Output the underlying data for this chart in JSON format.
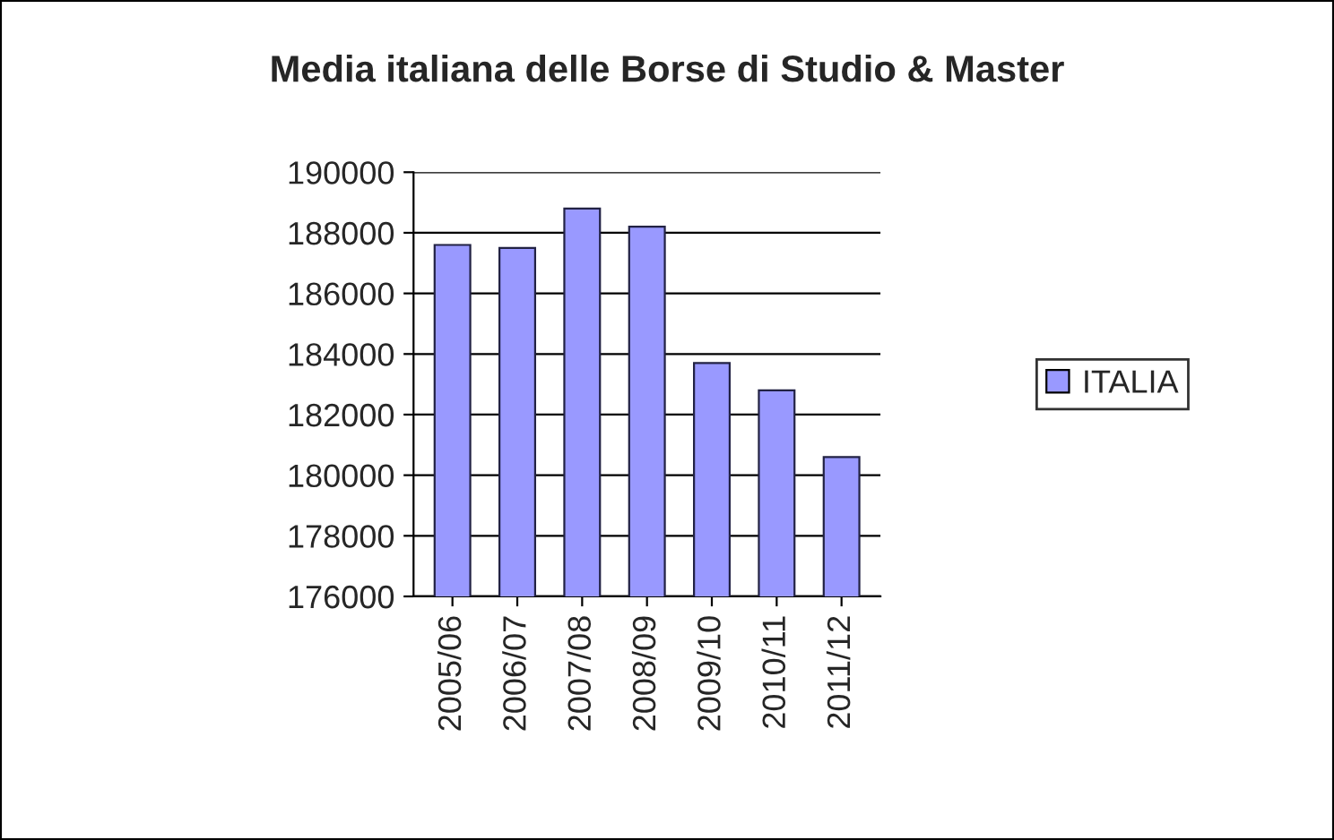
{
  "chart_data": {
    "type": "bar",
    "title": "Media italiana delle Borse di Studio & Master",
    "categories": [
      "2005/06",
      "2006/07",
      "2007/08",
      "2008/09",
      "2009/10",
      "2010/11",
      "2011/12"
    ],
    "series": [
      {
        "name": "ITALIA",
        "color": "#9999ff",
        "values": [
          187600,
          187500,
          188800,
          188200,
          183700,
          182800,
          180600
        ]
      }
    ],
    "ylim": [
      176000,
      190000
    ],
    "yticks": [
      176000,
      178000,
      180000,
      182000,
      184000,
      186000,
      188000,
      190000
    ],
    "grid": "y",
    "legend": "right"
  }
}
